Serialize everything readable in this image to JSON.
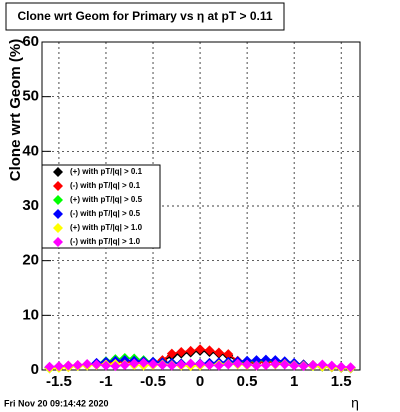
{
  "chart_data": {
    "type": "line",
    "title": "Clone wrt Geom for Primary vs   η at pT > 0.11",
    "y_label": "Clone wrt Geom (%)",
    "x_label": "η",
    "footer": "Fri Nov 20 09:14:42 2020",
    "x": [
      -1.6,
      -1.5,
      -1.4,
      -1.3,
      -1.2,
      -1.1,
      -1.0,
      -0.9,
      -0.8,
      -0.7,
      -0.6,
      -0.5,
      -0.4,
      -0.3,
      -0.2,
      -0.1,
      0.0,
      0.1,
      0.2,
      0.3,
      0.4,
      0.5,
      0.6,
      0.7,
      0.8,
      0.9,
      1.0,
      1.1,
      1.2,
      1.3,
      1.4,
      1.5,
      1.6
    ],
    "series": [
      {
        "name": "(+) with pT/|q| > 0.1",
        "color": "#000000",
        "values": [
          0.4,
          0.6,
          0.7,
          0.8,
          0.9,
          1.0,
          1.2,
          1.5,
          1.6,
          1.5,
          1.4,
          1.3,
          1.6,
          2.6,
          3.0,
          3.2,
          3.5,
          3.3,
          3.0,
          2.6,
          1.6,
          1.4,
          1.3,
          1.5,
          1.6,
          1.4,
          1.2,
          1.0,
          0.9,
          0.8,
          0.7,
          0.5,
          0.4
        ]
      },
      {
        "name": "(-) with pT/|q| > 0.1",
        "color": "#ff0000",
        "values": [
          0.5,
          0.6,
          0.8,
          0.9,
          1.0,
          1.1,
          1.3,
          1.4,
          1.5,
          1.4,
          1.3,
          1.4,
          1.8,
          3.0,
          3.3,
          3.5,
          3.8,
          3.6,
          3.2,
          2.9,
          1.7,
          1.5,
          1.4,
          1.4,
          1.5,
          1.3,
          1.1,
          1.0,
          0.9,
          0.7,
          0.6,
          0.5,
          0.4
        ]
      },
      {
        "name": "(+) with pT/|q| > 0.5",
        "color": "#00ff00",
        "values": [
          0.3,
          0.5,
          0.6,
          0.8,
          0.9,
          1.2,
          1.6,
          2.0,
          2.2,
          2.1,
          1.8,
          1.5,
          1.4,
          1.3,
          1.2,
          1.1,
          1.0,
          1.1,
          1.2,
          1.3,
          1.5,
          1.6,
          1.7,
          1.8,
          1.7,
          1.5,
          1.2,
          0.9,
          0.7,
          0.6,
          0.5,
          0.4,
          0.3
        ]
      },
      {
        "name": "(-) with pT/|q| > 0.5",
        "color": "#0000ff",
        "values": [
          0.4,
          0.5,
          0.7,
          0.8,
          1.0,
          1.3,
          1.5,
          1.7,
          1.8,
          1.7,
          1.6,
          1.5,
          1.4,
          1.3,
          1.2,
          1.1,
          1.2,
          1.3,
          1.4,
          1.5,
          1.6,
          1.7,
          1.8,
          1.9,
          1.8,
          1.6,
          1.3,
          1.0,
          0.8,
          0.6,
          0.5,
          0.4,
          0.3
        ]
      },
      {
        "name": "(+) with pT/|q| > 1.0",
        "color": "#ffff00",
        "values": [
          0.3,
          0.4,
          0.5,
          0.7,
          0.8,
          0.9,
          1.0,
          1.1,
          1.0,
          0.9,
          0.8,
          0.9,
          1.0,
          0.9,
          0.8,
          0.7,
          0.8,
          0.9,
          1.0,
          1.1,
          1.0,
          0.9,
          0.8,
          0.9,
          1.0,
          1.1,
          0.9,
          0.8,
          0.7,
          0.6,
          0.5,
          0.4,
          0.3
        ]
      },
      {
        "name": "(-) with pT/|q| > 1.0",
        "color": "#ff00ff",
        "values": [
          0.6,
          0.7,
          0.8,
          0.9,
          1.1,
          1.0,
          0.8,
          0.7,
          0.9,
          1.2,
          1.3,
          1.1,
          0.9,
          0.8,
          1.0,
          1.2,
          1.1,
          0.9,
          0.8,
          1.0,
          1.2,
          1.0,
          0.8,
          0.9,
          1.1,
          1.0,
          0.8,
          0.7,
          0.9,
          1.0,
          0.8,
          0.6,
          0.5
        ]
      }
    ],
    "xlim": [
      -1.68,
      1.7
    ],
    "ylim": [
      0,
      60
    ],
    "xticks": [
      -1.5,
      -1,
      -0.5,
      0,
      0.5,
      1,
      1.5
    ],
    "yticks": [
      0,
      10,
      20,
      30,
      40,
      50,
      60
    ],
    "grid": true
  }
}
